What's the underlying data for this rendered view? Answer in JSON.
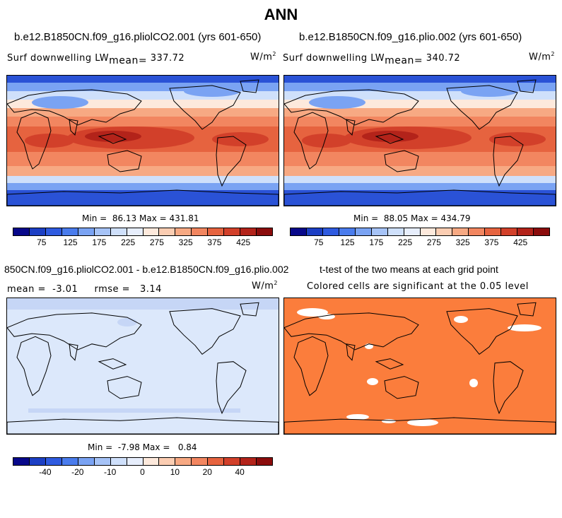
{
  "page_title": "ANN",
  "panels": {
    "top_left": {
      "case_title": "b.e12.B1850CN.f09_g16.pliolCO2.001 (yrs 601-650)",
      "variable_label": "Surf downwelling LW",
      "mean_label": "mean=",
      "mean_value": "337.72",
      "units": "W/m",
      "units_sup": "2",
      "min_label": "Min =",
      "min_value": "86.13",
      "max_label": "Max =",
      "max_value": "431.81"
    },
    "top_right": {
      "case_title": "b.e12.B1850CN.f09_g16.plio.002 (yrs 601-650)",
      "variable_label": "Surf downwelling LW",
      "mean_label": "mean=",
      "mean_value": "340.72",
      "units": "W/m",
      "units_sup": "2",
      "min_label": "Min =",
      "min_value": "88.05",
      "max_label": "Max =",
      "max_value": "434.79"
    },
    "bottom_left": {
      "diff_title": "850CN.f09_g16.pliolCO2.001 - b.e12.B1850CN.f09_g16.plio.002",
      "mean_label": "mean =",
      "mean_value": "-3.01",
      "rmse_label": "rmse =",
      "rmse_value": "3.14",
      "units": "W/m",
      "units_sup": "2",
      "min_label": "Min =",
      "min_value": "-7.98",
      "max_label": "Max =",
      "max_value": "0.84"
    },
    "bottom_right": {
      "ttest_title": "t-test of the two means at each grid point",
      "significance_note": "Colored cells are significant at the 0.05 level"
    }
  },
  "colorbars": {
    "absolute": {
      "ticks": [
        "75",
        "125",
        "175",
        "225",
        "275",
        "325",
        "375",
        "425"
      ],
      "colors": [
        "#08088a",
        "#1c3fc4",
        "#2f5be0",
        "#4a7ced",
        "#7aa3f3",
        "#a6c3f7",
        "#cfe0fb",
        "#e7eefc",
        "#fde9dc",
        "#fbcdb2",
        "#f7a983",
        "#f28660",
        "#e6633f",
        "#d2402a",
        "#b3231a",
        "#8b0c0c"
      ]
    },
    "difference": {
      "ticks": [
        "-40",
        "-20",
        "-10",
        "0",
        "10",
        "20",
        "40"
      ],
      "colors": [
        "#08088a",
        "#1c3fc4",
        "#2f5be0",
        "#4a7ced",
        "#7aa3f3",
        "#a6c3f7",
        "#cfe0fb",
        "#e7eefc",
        "#fde9dc",
        "#fbcdb2",
        "#f7a983",
        "#f28660",
        "#e6633f",
        "#d2402a",
        "#b3231a",
        "#8b0c0c"
      ]
    }
  },
  "map_colors": {
    "polar_blue": "#2a52d6",
    "mid_blue": "#7aa3f3",
    "light_blue": "#cfe0fb",
    "pale": "#fde9dc",
    "peach": "#f7a983",
    "orange": "#f28660",
    "red": "#e6633f",
    "dark_red": "#d2402a",
    "deep_red": "#b3231a",
    "diff_field": "#dce8fb",
    "diff_band": "#c6d6f6",
    "ttest_fill": "#fb7d3c",
    "coast": "#000000"
  }
}
